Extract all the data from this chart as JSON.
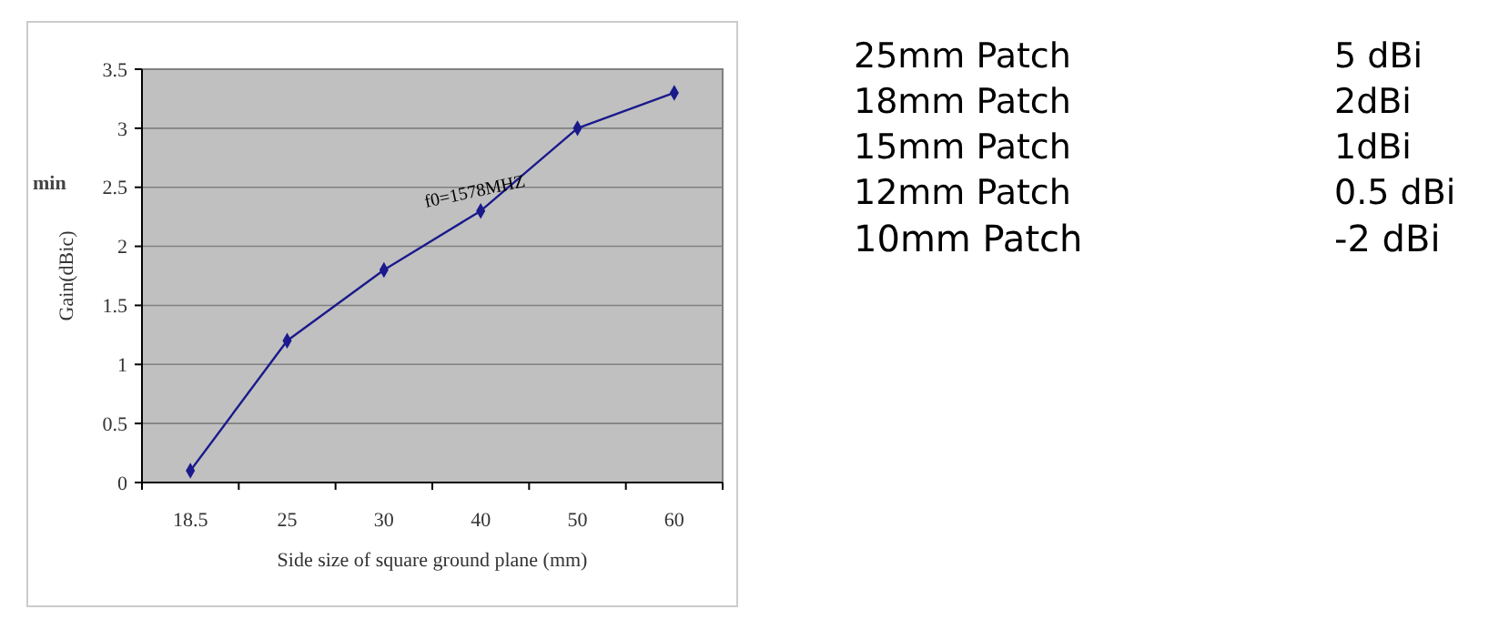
{
  "chart_data": [
    {
      "type": "line",
      "xlabel": "Side size of square ground plane (mm)",
      "ylabel": "Gain(dBic)",
      "categories": [
        "18.5",
        "25",
        "30",
        "40",
        "50",
        "60"
      ],
      "series": [
        {
          "color": "#1a1a8c",
          "values": [
            0.1,
            1.2,
            1.8,
            2.3,
            3.0,
            3.3
          ]
        }
      ],
      "ylim": [
        0,
        3.5
      ],
      "yticks": [
        0,
        0.5,
        1,
        1.5,
        2,
        2.5,
        3,
        3.5
      ],
      "grid": "y",
      "marker": "diamond",
      "line_style": "solid",
      "annotations": [
        "f0=1578MHZ",
        "min"
      ]
    },
    {
      "type": "other",
      "annotations": [
        "25mm Patch",
        "5 dBi",
        "18mm Patch",
        "2dBi",
        "15mm Patch",
        "1dBi",
        "12mm Patch",
        "0.5 dBi",
        "10mm Patch",
        "-2 dBi"
      ]
    }
  ]
}
